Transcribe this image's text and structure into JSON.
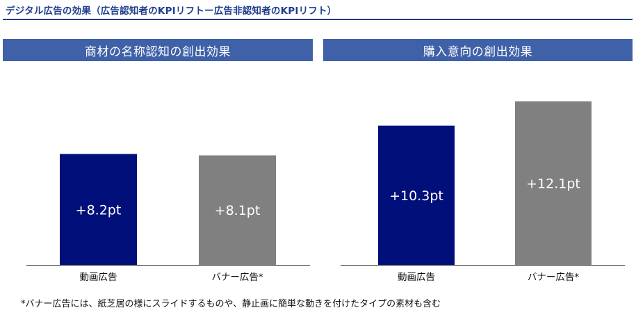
{
  "title": "デジタル広告の効果（広告認知者のKPIリフトー広告非認知者のKPIリフト）",
  "footnote": "*バナー広告には、紙芝居の様にスライドするものや、静止画に簡単な動きを付けたタイプの素材も含む",
  "colors": {
    "title": "#1f3d8c",
    "header": "#3f61a8",
    "video_bar": "#000f7a",
    "banner_bar": "#808080",
    "axis": "#333333"
  },
  "chart_data": [
    {
      "type": "bar",
      "title": "商材の名称認知の創出効果",
      "categories": [
        "動画広告",
        "バナー広告*"
      ],
      "values": [
        8.2,
        8.1
      ],
      "value_labels": [
        "+8.2pt",
        "+8.1pt"
      ],
      "ylim": [
        0,
        14
      ],
      "grid": false,
      "legend": "none"
    },
    {
      "type": "bar",
      "title": "購入意向の創出効果",
      "categories": [
        "動画広告",
        "バナー広告*"
      ],
      "values": [
        10.3,
        12.1
      ],
      "value_labels": [
        "+10.3pt",
        "+12.1pt"
      ],
      "ylim": [
        0,
        14
      ],
      "grid": false,
      "legend": "none"
    }
  ]
}
